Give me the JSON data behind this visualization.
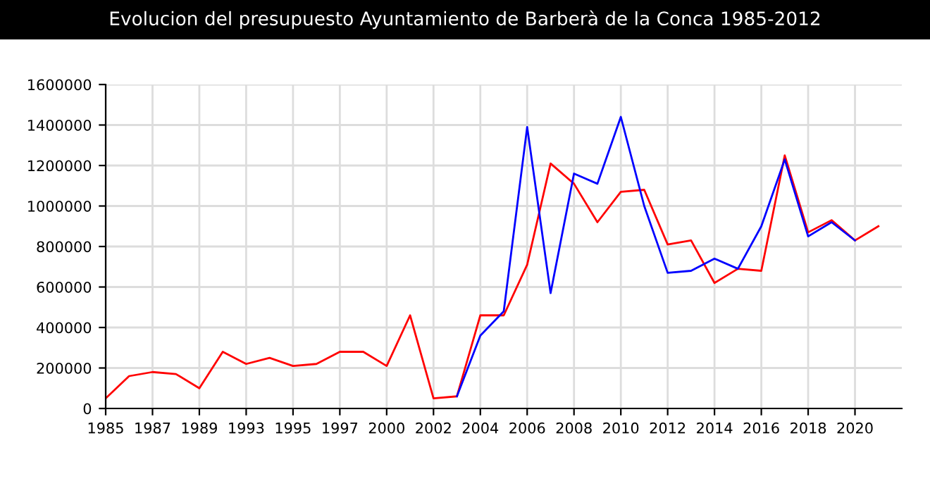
{
  "chart_data": {
    "type": "line",
    "title": "Evolucion del presupuesto Ayuntamiento de Barberà de la Conca 1985-2012",
    "categories": [
      "1985",
      null,
      "1987",
      null,
      "1989",
      null,
      "1993",
      null,
      "1995",
      null,
      "1997",
      null,
      "2000",
      null,
      "2002",
      null,
      "2004",
      null,
      "2006",
      null,
      "2008",
      null,
      "2010",
      null,
      "2012",
      null,
      "2014",
      null,
      "2016",
      null,
      "2018",
      null,
      "2020",
      null
    ],
    "series": [
      {
        "color": "#ff0000",
        "values": [
          50000,
          160000,
          180000,
          170000,
          100000,
          280000,
          220000,
          250000,
          210000,
          220000,
          280000,
          280000,
          210000,
          460000,
          50000,
          60000,
          460000,
          460000,
          710000,
          1210000,
          1110000,
          920000,
          1070000,
          1080000,
          810000,
          830000,
          620000,
          690000,
          680000,
          1250000,
          870000,
          930000,
          830000,
          900000
        ]
      },
      {
        "color": "#0000ff",
        "values": [
          null,
          null,
          null,
          null,
          null,
          null,
          null,
          null,
          null,
          null,
          null,
          null,
          null,
          null,
          null,
          60000,
          360000,
          480000,
          1390000,
          570000,
          1160000,
          1110000,
          1440000,
          1000000,
          670000,
          680000,
          740000,
          690000,
          900000,
          1230000,
          850000,
          920000,
          830000,
          null
        ]
      }
    ],
    "ylim": [
      0,
      1600000
    ],
    "yticks": [
      0,
      200000,
      400000,
      600000,
      800000,
      1000000,
      1200000,
      1400000,
      1600000
    ],
    "grid": true
  }
}
